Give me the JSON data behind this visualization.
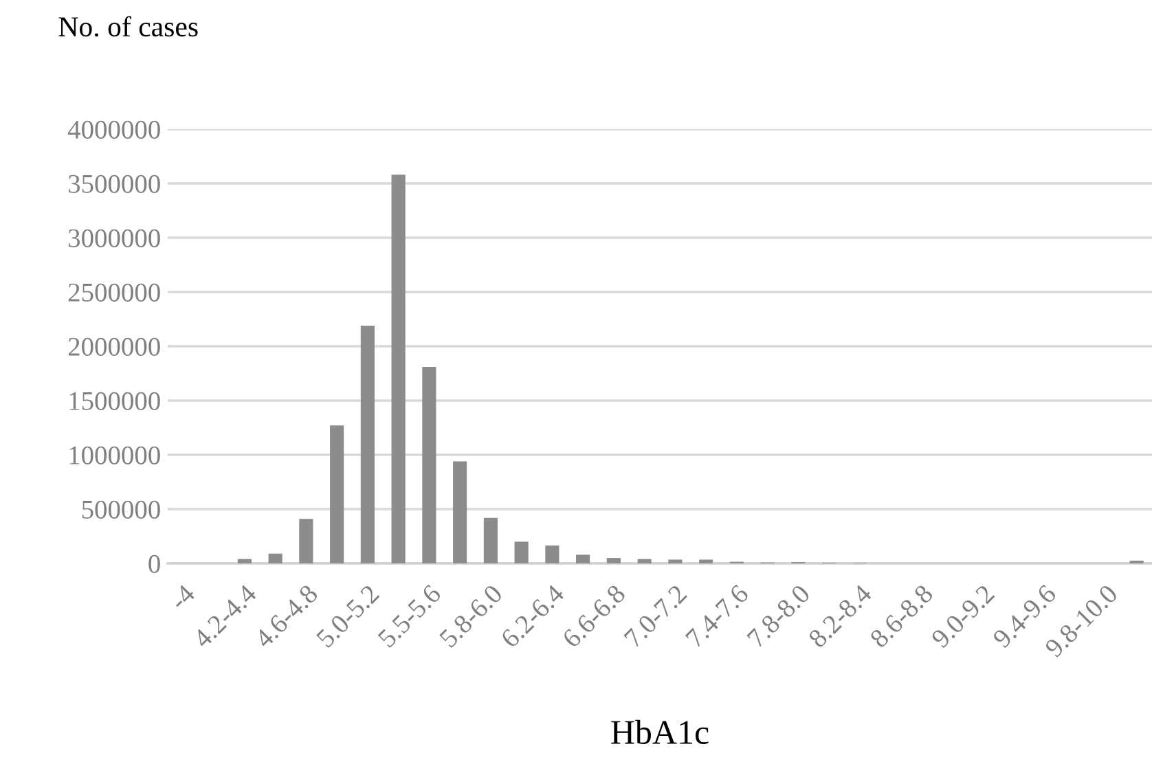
{
  "chart_data": {
    "type": "bar",
    "ylabel": "No. of cases",
    "xlabel": "HbA1c",
    "categories": [
      "-4",
      null,
      "4.2-4.4",
      null,
      "4.6-4.8",
      null,
      "5.0-5.2",
      null,
      "5.5-5.6",
      null,
      "5.8-6.0",
      null,
      "6.2-6.4",
      null,
      "6.6-6.8",
      null,
      "7.0-7.2",
      null,
      "7.4-7.6",
      null,
      "7.8-8.0",
      null,
      "8.2-8.4",
      null,
      "8.6-8.8",
      null,
      "9.0-9.2",
      null,
      "9.4-9.6",
      null,
      "9.8-10.0",
      null
    ],
    "values": [
      0,
      0,
      40000,
      90000,
      410000,
      1270000,
      2190000,
      3580000,
      1810000,
      940000,
      420000,
      200000,
      165000,
      80000,
      50000,
      40000,
      35000,
      35000,
      15000,
      8000,
      12000,
      6000,
      4000,
      0,
      0,
      0,
      0,
      0,
      0,
      0,
      0,
      25000
    ],
    "color": "#8c8c8c",
    "ylim": [
      0,
      4000000
    ],
    "yticks": [
      0,
      500000,
      1000000,
      1500000,
      2000000,
      2500000,
      3000000,
      3500000,
      4000000
    ],
    "grid": "y"
  }
}
